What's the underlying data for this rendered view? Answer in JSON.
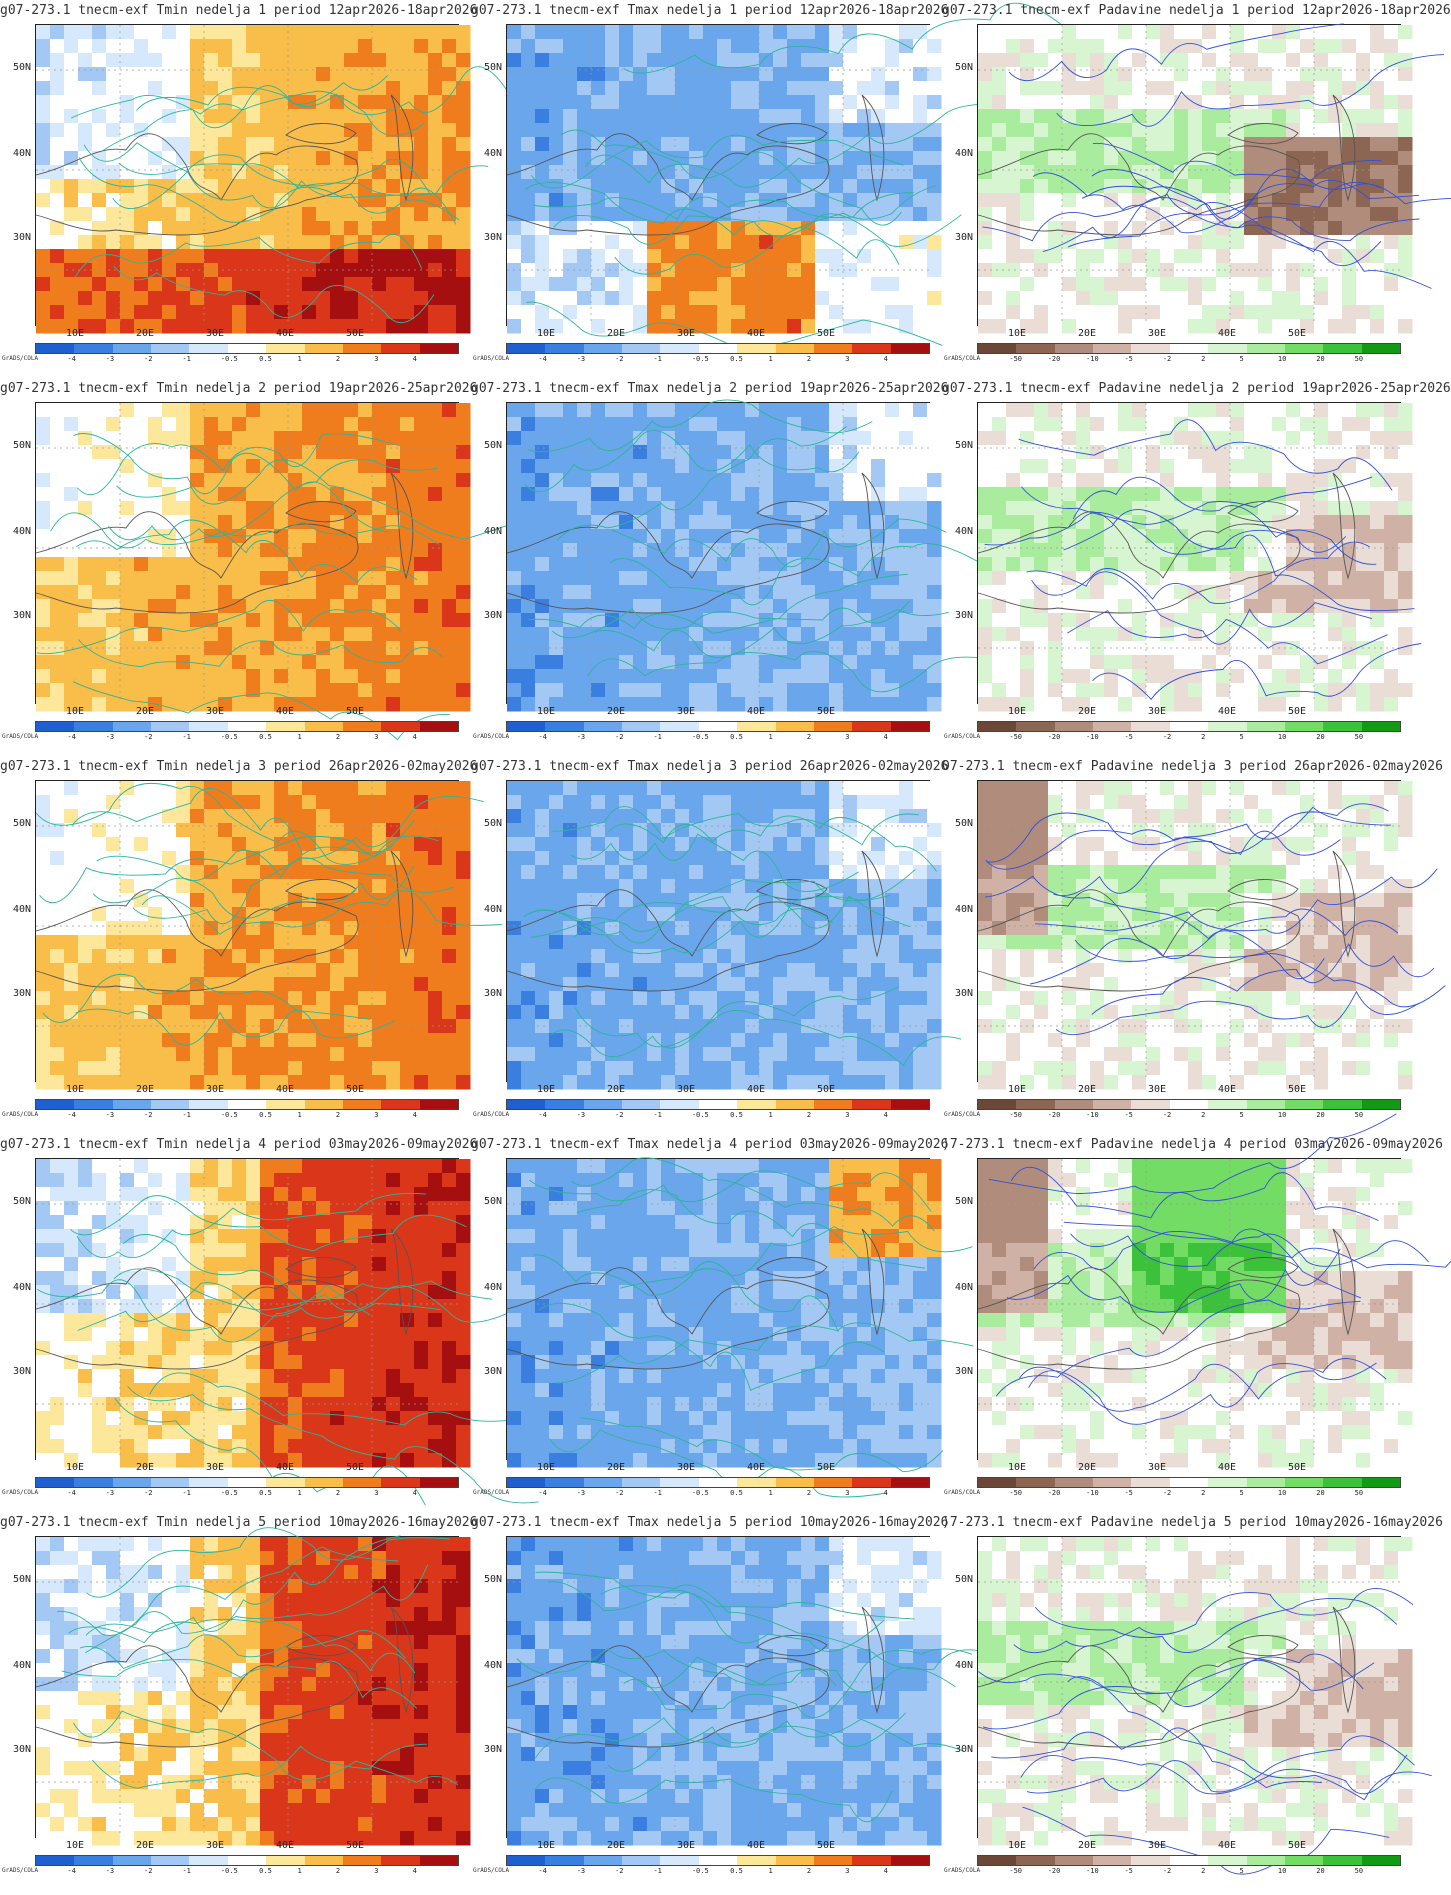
{
  "grads_label": "GrADS/COLA",
  "lat_labels": [
    "50N",
    "40N",
    "30N"
  ],
  "lon_labels": [
    "10E",
    "20E",
    "30E",
    "40E",
    "50E"
  ],
  "colorbars": {
    "temp": {
      "ticks": [
        "-4",
        "-3",
        "-2",
        "-1",
        "-0.5",
        "0.5",
        "1",
        "2",
        "3",
        "4"
      ],
      "colors": [
        "#1f5fcf",
        "#3a7fe0",
        "#6aa6ec",
        "#a3c8f4",
        "#d6e8fb",
        "#ffffff",
        "#fde79a",
        "#f9bd4a",
        "#ef7d1d",
        "#d9361a",
        "#a50f0f"
      ]
    },
    "precip": {
      "ticks": [
        "-50",
        "-20",
        "-10",
        "-5",
        "-2",
        "2",
        "5",
        "10",
        "20",
        "50"
      ],
      "colors": [
        "#6b4737",
        "#8d6553",
        "#b08c7c",
        "#cfb2a5",
        "#eaddd5",
        "#ffffff",
        "#d8f5d2",
        "#a9ec9e",
        "#72dc64",
        "#3bc23a",
        "#139a14"
      ]
    }
  },
  "rows": [
    {
      "week": "1",
      "tmin_title": "g07-273.1  tnecm-exf Tmin nedelja 1 period 12apr2026-18apr2026",
      "tmax_title": "g07-273.1  tnecm-exf Tmax nedelja 1 period 12apr2026-18apr2026",
      "precip_title": "g07-273.1  tnecm-exf Padavine nedelja 1 period 12apr2026-18apr2026"
    },
    {
      "week": "2",
      "tmin_title": "g07-273.1  tnecm-exf Tmin nedelja 2 period 19apr2026-25apr2026",
      "tmax_title": "g07-273.1  tnecm-exf Tmax nedelja 2 period 19apr2026-25apr2026",
      "precip_title": "g07-273.1  tnecm-exf Padavine nedelja 2 period 19apr2026-25apr2026"
    },
    {
      "week": "3",
      "tmin_title": "g07-273.1  tnecm-exf Tmin nedelja 3 period 26apr2026-02may2026",
      "tmax_title": "g07-273.1  tnecm-exf Tmax nedelja 3 period 26apr2026-02may2026",
      "precip_title": "07-273.1  tnecm-exf Padavine nedelja 3 period 26apr2026-02may2026"
    },
    {
      "week": "4",
      "tmin_title": "g07-273.1  tnecm-exf Tmin nedelja 4 period 03may2026-09may2026",
      "tmax_title": "g07-273.1  tnecm-exf Tmax nedelja 4 period 03may2026-09may2026",
      "precip_title": ")7-273.1  tnecm-exf Padavine nedelja 4 period 03may2026-09may2026"
    },
    {
      "week": "5",
      "tmin_title": "g07-273.1  tnecm-exf Tmin nedelja 5 period 10may2026-16may2026",
      "tmax_title": "g07-273.1  tnecm-exf Tmax nedelja 5 period 10may2026-16may2026",
      "precip_title": ")7-273.1  tnecm-exf Padavine nedelja 5 period 10may2026-16may2026"
    }
  ]
}
